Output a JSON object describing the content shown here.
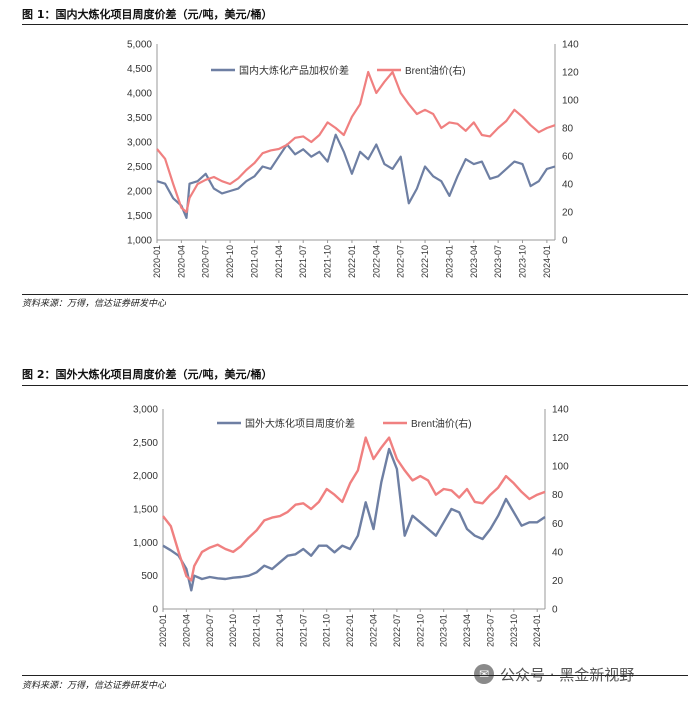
{
  "figures": [
    {
      "title": "图 1：国内大炼化项目周度价差（元/吨，美元/桶）",
      "source": "资料来源：万得，信达证券研发中心"
    },
    {
      "title": "图 2：国外大炼化项目周度价差（元/吨，美元/桶）",
      "source": "资料来源：万得，信达证券研发中心"
    }
  ],
  "watermark": {
    "text": "公众号 · 黑金新视野",
    "icon": "wechat-icon"
  },
  "chart_data": [
    {
      "type": "line",
      "x_ticks": [
        "2020-01",
        "2020-04",
        "2020-07",
        "2020-10",
        "2021-01",
        "2021-04",
        "2021-07",
        "2021-10",
        "2022-01",
        "2022-04",
        "2022-07",
        "2022-10",
        "2023-01",
        "2023-04",
        "2023-07",
        "2023-10",
        "2024-01"
      ],
      "y_left": {
        "min": 1000,
        "max": 5000,
        "ticks": [
          "1,000",
          "1,500",
          "2,000",
          "2,500",
          "3,000",
          "3,500",
          "4,000",
          "4,500",
          "5,000"
        ]
      },
      "y_right": {
        "min": 0,
        "max": 140,
        "ticks": [
          "0",
          "20",
          "40",
          "60",
          "80",
          "100",
          "120",
          "140"
        ]
      },
      "legend_position": "top",
      "series": [
        {
          "name": "国内大炼化产品加权价差",
          "axis": "left",
          "color": "#6e7fa3",
          "points": [
            [
              "2020-01",
              2200
            ],
            [
              "2020-02",
              2150
            ],
            [
              "2020-03",
              1850
            ],
            [
              "2020-04",
              1700
            ],
            [
              "2020-04-20",
              1450
            ],
            [
              "2020-05",
              2150
            ],
            [
              "2020-06",
              2200
            ],
            [
              "2020-07",
              2350
            ],
            [
              "2020-08",
              2050
            ],
            [
              "2020-09",
              1950
            ],
            [
              "2020-10",
              2000
            ],
            [
              "2020-11",
              2050
            ],
            [
              "2020-12",
              2200
            ],
            [
              "2021-01",
              2300
            ],
            [
              "2021-02",
              2500
            ],
            [
              "2021-03",
              2450
            ],
            [
              "2021-04",
              2700
            ],
            [
              "2021-05",
              2950
            ],
            [
              "2021-06",
              2750
            ],
            [
              "2021-07",
              2850
            ],
            [
              "2021-08",
              2700
            ],
            [
              "2021-09",
              2800
            ],
            [
              "2021-10",
              2600
            ],
            [
              "2021-11",
              3150
            ],
            [
              "2021-12",
              2800
            ],
            [
              "2022-01",
              2350
            ],
            [
              "2022-02",
              2800
            ],
            [
              "2022-03",
              2650
            ],
            [
              "2022-04",
              2950
            ],
            [
              "2022-05",
              2550
            ],
            [
              "2022-06",
              2450
            ],
            [
              "2022-07",
              2700
            ],
            [
              "2022-08",
              1750
            ],
            [
              "2022-09",
              2050
            ],
            [
              "2022-10",
              2500
            ],
            [
              "2022-11",
              2300
            ],
            [
              "2022-12",
              2200
            ],
            [
              "2023-01",
              1900
            ],
            [
              "2023-02",
              2300
            ],
            [
              "2023-03",
              2650
            ],
            [
              "2023-04",
              2550
            ],
            [
              "2023-05",
              2600
            ],
            [
              "2023-06",
              2250
            ],
            [
              "2023-07",
              2300
            ],
            [
              "2023-08",
              2450
            ],
            [
              "2023-09",
              2600
            ],
            [
              "2023-10",
              2550
            ],
            [
              "2023-11",
              2100
            ],
            [
              "2023-12",
              2200
            ],
            [
              "2024-01",
              2450
            ],
            [
              "2024-02",
              2500
            ]
          ]
        },
        {
          "name": "Brent油价(右)",
          "axis": "right",
          "color": "#f08080",
          "points": [
            [
              "2020-01",
              65
            ],
            [
              "2020-02",
              58
            ],
            [
              "2020-03",
              40
            ],
            [
              "2020-04",
              23
            ],
            [
              "2020-04-20",
              20
            ],
            [
              "2020-05",
              30
            ],
            [
              "2020-06",
              40
            ],
            [
              "2020-07",
              43
            ],
            [
              "2020-08",
              45
            ],
            [
              "2020-09",
              42
            ],
            [
              "2020-10",
              40
            ],
            [
              "2020-11",
              44
            ],
            [
              "2020-12",
              50
            ],
            [
              "2021-01",
              55
            ],
            [
              "2021-02",
              62
            ],
            [
              "2021-03",
              64
            ],
            [
              "2021-04",
              65
            ],
            [
              "2021-05",
              68
            ],
            [
              "2021-06",
              73
            ],
            [
              "2021-07",
              74
            ],
            [
              "2021-08",
              70
            ],
            [
              "2021-09",
              75
            ],
            [
              "2021-10",
              84
            ],
            [
              "2021-11",
              80
            ],
            [
              "2021-12",
              75
            ],
            [
              "2022-01",
              88
            ],
            [
              "2022-02",
              97
            ],
            [
              "2022-03",
              120
            ],
            [
              "2022-04",
              105
            ],
            [
              "2022-05",
              113
            ],
            [
              "2022-06",
              120
            ],
            [
              "2022-07",
              105
            ],
            [
              "2022-08",
              97
            ],
            [
              "2022-09",
              90
            ],
            [
              "2022-10",
              93
            ],
            [
              "2022-11",
              90
            ],
            [
              "2022-12",
              80
            ],
            [
              "2023-01",
              84
            ],
            [
              "2023-02",
              83
            ],
            [
              "2023-03",
              78
            ],
            [
              "2023-04",
              84
            ],
            [
              "2023-05",
              75
            ],
            [
              "2023-06",
              74
            ],
            [
              "2023-07",
              80
            ],
            [
              "2023-08",
              85
            ],
            [
              "2023-09",
              93
            ],
            [
              "2023-10",
              88
            ],
            [
              "2023-11",
              82
            ],
            [
              "2023-12",
              77
            ],
            [
              "2024-01",
              80
            ],
            [
              "2024-02",
              82
            ]
          ]
        }
      ]
    },
    {
      "type": "line",
      "x_ticks": [
        "2020-01",
        "2020-04",
        "2020-07",
        "2020-10",
        "2021-01",
        "2021-04",
        "2021-07",
        "2021-10",
        "2022-01",
        "2022-04",
        "2022-07",
        "2022-10",
        "2023-01",
        "2023-04",
        "2023-07",
        "2023-10",
        "2024-01"
      ],
      "y_left": {
        "min": 0,
        "max": 3000,
        "ticks": [
          "0",
          "500",
          "1,000",
          "1,500",
          "2,000",
          "2,500",
          "3,000"
        ]
      },
      "y_right": {
        "min": 0,
        "max": 140,
        "ticks": [
          "0",
          "20",
          "40",
          "60",
          "80",
          "100",
          "120",
          "140"
        ]
      },
      "legend_position": "top",
      "series": [
        {
          "name": "国外大炼化项目周度价差",
          "axis": "left",
          "color": "#6e7fa3",
          "points": [
            [
              "2020-01",
              950
            ],
            [
              "2020-02",
              880
            ],
            [
              "2020-03",
              800
            ],
            [
              "2020-04",
              600
            ],
            [
              "2020-04-20",
              280
            ],
            [
              "2020-05",
              500
            ],
            [
              "2020-06",
              450
            ],
            [
              "2020-07",
              480
            ],
            [
              "2020-08",
              460
            ],
            [
              "2020-09",
              450
            ],
            [
              "2020-10",
              470
            ],
            [
              "2020-11",
              480
            ],
            [
              "2020-12",
              500
            ],
            [
              "2021-01",
              550
            ],
            [
              "2021-02",
              650
            ],
            [
              "2021-03",
              600
            ],
            [
              "2021-04",
              700
            ],
            [
              "2021-05",
              800
            ],
            [
              "2021-06",
              820
            ],
            [
              "2021-07",
              900
            ],
            [
              "2021-08",
              800
            ],
            [
              "2021-09",
              950
            ],
            [
              "2021-10",
              950
            ],
            [
              "2021-11",
              850
            ],
            [
              "2021-12",
              950
            ],
            [
              "2022-01",
              900
            ],
            [
              "2022-02",
              1100
            ],
            [
              "2022-03",
              1600
            ],
            [
              "2022-04",
              1200
            ],
            [
              "2022-05",
              1900
            ],
            [
              "2022-06",
              2400
            ],
            [
              "2022-07",
              2100
            ],
            [
              "2022-08",
              1100
            ],
            [
              "2022-09",
              1400
            ],
            [
              "2022-10",
              1300
            ],
            [
              "2022-11",
              1200
            ],
            [
              "2022-12",
              1100
            ],
            [
              "2023-01",
              1300
            ],
            [
              "2023-02",
              1500
            ],
            [
              "2023-03",
              1450
            ],
            [
              "2023-04",
              1200
            ],
            [
              "2023-05",
              1100
            ],
            [
              "2023-06",
              1050
            ],
            [
              "2023-07",
              1200
            ],
            [
              "2023-08",
              1400
            ],
            [
              "2023-09",
              1650
            ],
            [
              "2023-10",
              1450
            ],
            [
              "2023-11",
              1250
            ],
            [
              "2023-12",
              1300
            ],
            [
              "2024-01",
              1300
            ],
            [
              "2024-02",
              1380
            ]
          ]
        },
        {
          "name": "Brent油价(右)",
          "axis": "right",
          "color": "#f08080",
          "points": [
            [
              "2020-01",
              65
            ],
            [
              "2020-02",
              58
            ],
            [
              "2020-03",
              40
            ],
            [
              "2020-04",
              23
            ],
            [
              "2020-04-20",
              20
            ],
            [
              "2020-05",
              30
            ],
            [
              "2020-06",
              40
            ],
            [
              "2020-07",
              43
            ],
            [
              "2020-08",
              45
            ],
            [
              "2020-09",
              42
            ],
            [
              "2020-10",
              40
            ],
            [
              "2020-11",
              44
            ],
            [
              "2020-12",
              50
            ],
            [
              "2021-01",
              55
            ],
            [
              "2021-02",
              62
            ],
            [
              "2021-03",
              64
            ],
            [
              "2021-04",
              65
            ],
            [
              "2021-05",
              68
            ],
            [
              "2021-06",
              73
            ],
            [
              "2021-07",
              74
            ],
            [
              "2021-08",
              70
            ],
            [
              "2021-09",
              75
            ],
            [
              "2021-10",
              84
            ],
            [
              "2021-11",
              80
            ],
            [
              "2021-12",
              75
            ],
            [
              "2022-01",
              88
            ],
            [
              "2022-02",
              97
            ],
            [
              "2022-03",
              120
            ],
            [
              "2022-04",
              105
            ],
            [
              "2022-05",
              113
            ],
            [
              "2022-06",
              120
            ],
            [
              "2022-07",
              105
            ],
            [
              "2022-08",
              97
            ],
            [
              "2022-09",
              90
            ],
            [
              "2022-10",
              93
            ],
            [
              "2022-11",
              90
            ],
            [
              "2022-12",
              80
            ],
            [
              "2023-01",
              84
            ],
            [
              "2023-02",
              83
            ],
            [
              "2023-03",
              78
            ],
            [
              "2023-04",
              84
            ],
            [
              "2023-05",
              75
            ],
            [
              "2023-06",
              74
            ],
            [
              "2023-07",
              80
            ],
            [
              "2023-08",
              85
            ],
            [
              "2023-09",
              93
            ],
            [
              "2023-10",
              88
            ],
            [
              "2023-11",
              82
            ],
            [
              "2023-12",
              77
            ],
            [
              "2024-01",
              80
            ],
            [
              "2024-02",
              82
            ]
          ]
        }
      ]
    }
  ]
}
